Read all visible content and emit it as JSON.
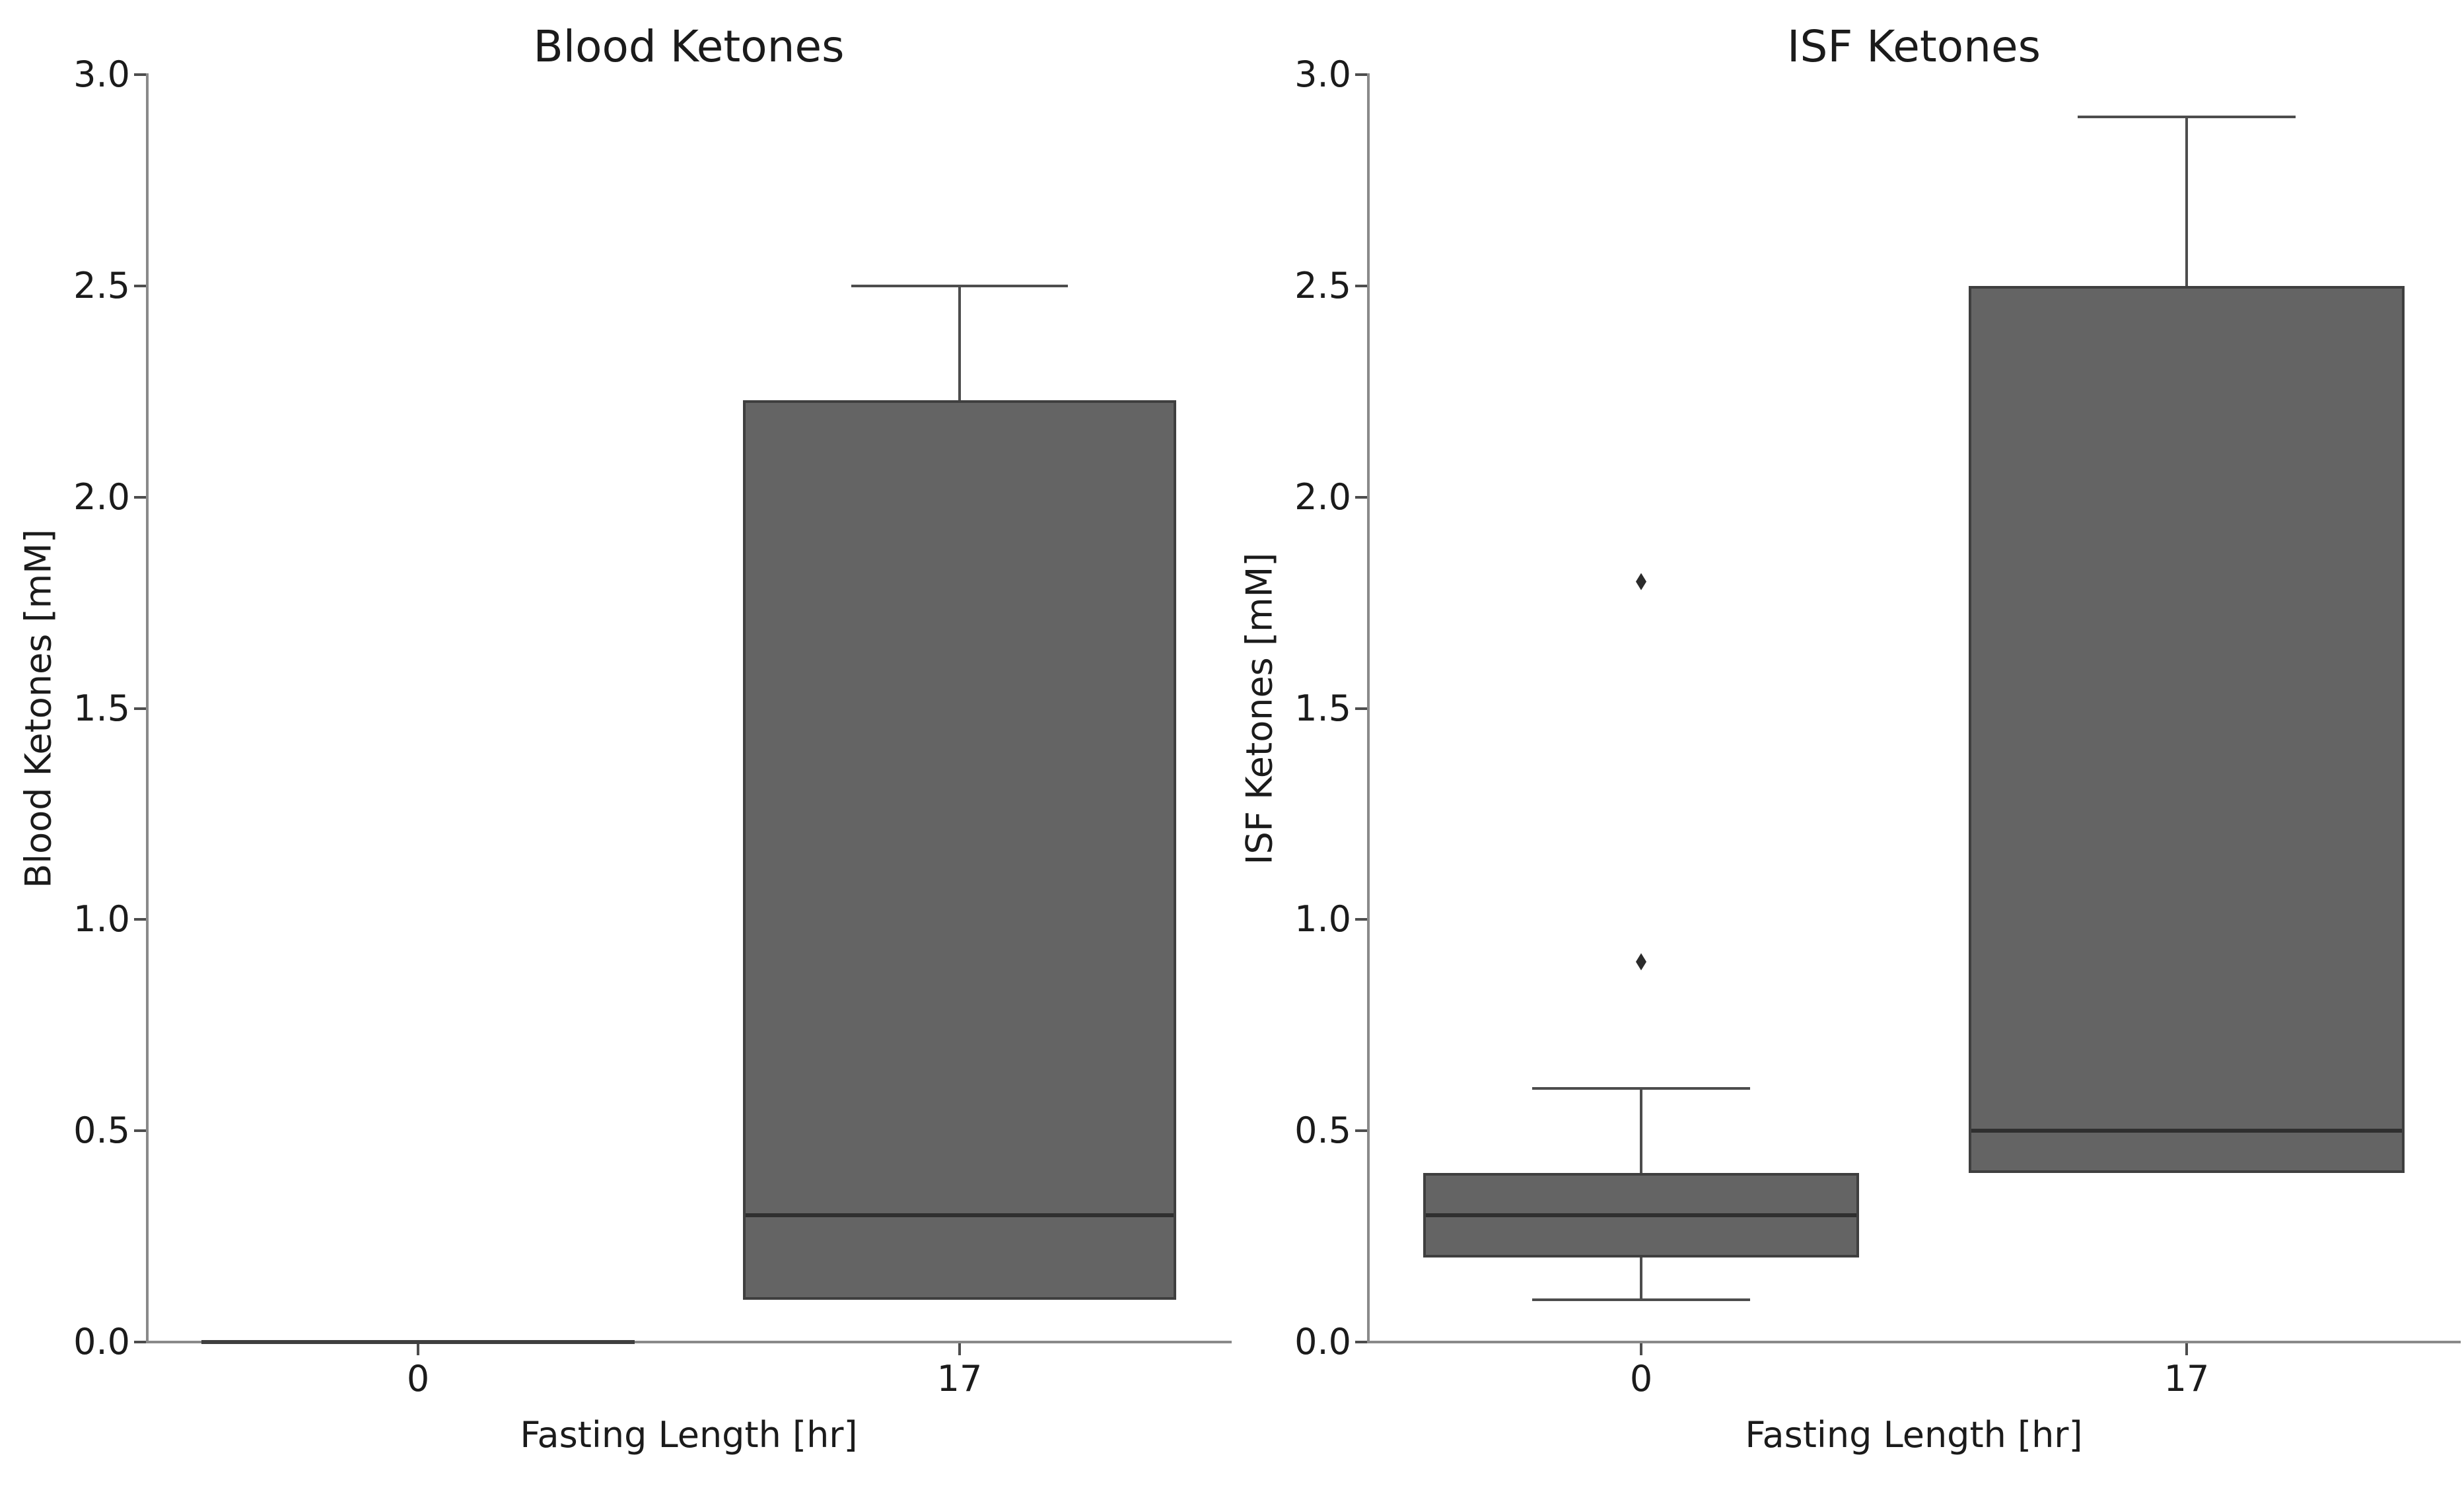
{
  "figure": {
    "background": "#ffffff"
  },
  "style": {
    "box_fill": "#646464",
    "box_edge": "#3f3f3f",
    "median_color": "#2f2f2f",
    "whisker_color": "#4d4d4d",
    "outlier_color": "#2b2b2b",
    "spine_color": "#8a8a8a",
    "tick_mark_color": "#4d4d4d",
    "text_color": "#1b1b1b"
  },
  "chart_data": [
    {
      "type": "box",
      "title": "Blood Ketones",
      "xlabel": "Fasting Length [hr]",
      "ylabel": "Blood Ketones [mM]",
      "ylim": [
        0.0,
        3.0
      ],
      "yticks": [
        "0.0",
        "0.5",
        "1.0",
        "1.5",
        "2.0",
        "2.5",
        "3.0"
      ],
      "categories": [
        "0",
        "17"
      ],
      "grid": false,
      "legend": "none",
      "boxes": [
        {
          "category": "0",
          "whisker_low": 0.0,
          "q1": 0.0,
          "median": 0.0,
          "q3": 0.0,
          "whisker_high": 0.0,
          "outliers": []
        },
        {
          "category": "17",
          "whisker_low": 0.1,
          "q1": 0.1,
          "median": 0.3,
          "q3": 2.23,
          "whisker_high": 2.5,
          "outliers": []
        }
      ]
    },
    {
      "type": "box",
      "title": "ISF Ketones",
      "xlabel": "Fasting Length [hr]",
      "ylabel": "ISF Ketones [mM]",
      "ylim": [
        0.0,
        3.0
      ],
      "yticks": [
        "0.0",
        "0.5",
        "1.0",
        "1.5",
        "2.0",
        "2.5",
        "3.0"
      ],
      "categories": [
        "0",
        "17"
      ],
      "grid": false,
      "legend": "none",
      "boxes": [
        {
          "category": "0",
          "whisker_low": 0.1,
          "q1": 0.2,
          "median": 0.3,
          "q3": 0.4,
          "whisker_high": 0.6,
          "outliers": [
            0.9,
            1.8
          ]
        },
        {
          "category": "17",
          "whisker_low": 0.4,
          "q1": 0.4,
          "median": 0.5,
          "q3": 2.5,
          "whisker_high": 2.9,
          "outliers": []
        }
      ]
    }
  ]
}
